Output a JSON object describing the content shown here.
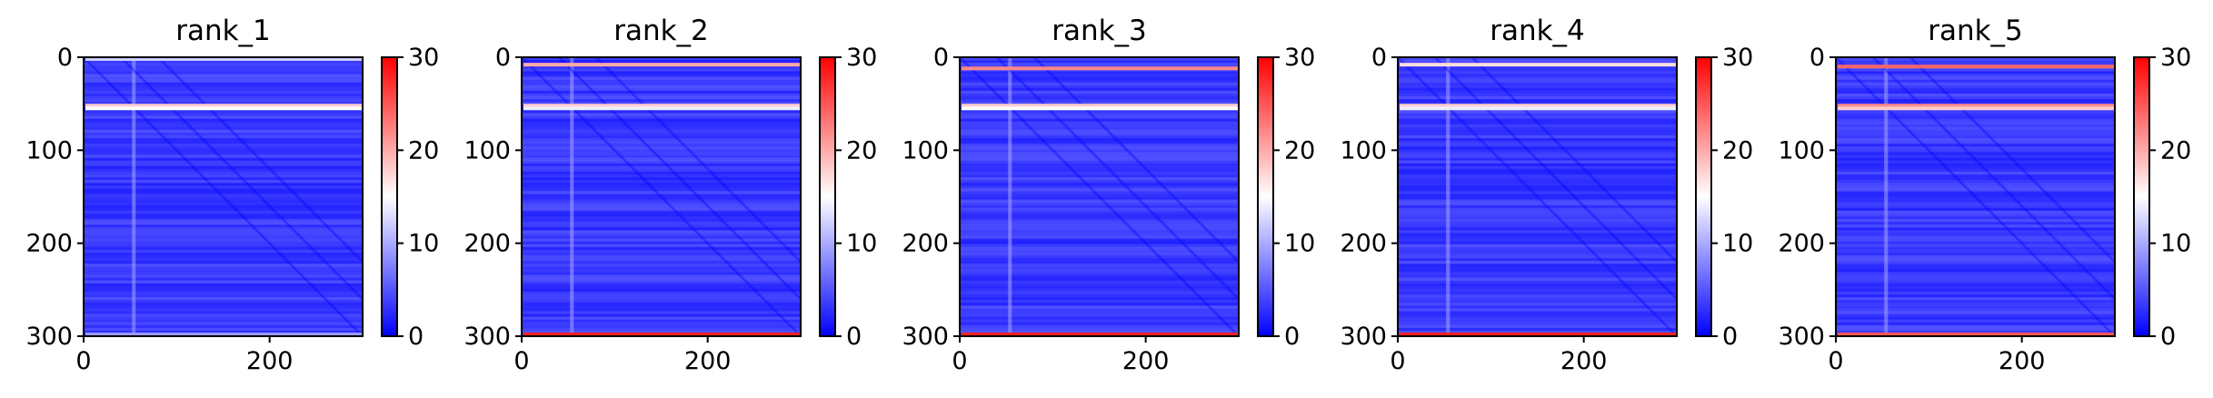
{
  "chart_data": [
    {
      "type": "heatmap",
      "title": "rank_1",
      "xlim": [
        0,
        300
      ],
      "ylim": [
        300,
        0
      ],
      "xticks": [
        "0",
        "200"
      ],
      "yticks": [
        "0",
        "100",
        "200",
        "300"
      ],
      "colorbar": {
        "range": [
          0,
          30
        ],
        "ticks": [
          "0",
          "10",
          "20",
          "30"
        ]
      },
      "bright_rows": [
        {
          "row": 52,
          "value": 18
        },
        {
          "row": 55,
          "value": 15
        },
        {
          "row": 2,
          "value": 12
        },
        {
          "row": 298,
          "value": 9
        }
      ]
    },
    {
      "type": "heatmap",
      "title": "rank_2",
      "xlim": [
        0,
        300
      ],
      "ylim": [
        300,
        0
      ],
      "xticks": [
        "0",
        "200"
      ],
      "yticks": [
        "0",
        "100",
        "200",
        "300"
      ],
      "colorbar": {
        "range": [
          0,
          30
        ],
        "ticks": [
          "0",
          "10",
          "20",
          "30"
        ]
      },
      "bright_rows": [
        {
          "row": 8,
          "value": 20
        },
        {
          "row": 52,
          "value": 18
        },
        {
          "row": 55,
          "value": 14
        },
        {
          "row": 298,
          "value": 28
        }
      ]
    },
    {
      "type": "heatmap",
      "title": "rank_3",
      "xlim": [
        0,
        300
      ],
      "ylim": [
        300,
        0
      ],
      "xticks": [
        "0",
        "200"
      ],
      "yticks": [
        "0",
        "100",
        "200",
        "300"
      ],
      "colorbar": {
        "range": [
          0,
          30
        ],
        "ticks": [
          "0",
          "10",
          "20",
          "30"
        ]
      },
      "bright_rows": [
        {
          "row": 12,
          "value": 22
        },
        {
          "row": 52,
          "value": 18
        },
        {
          "row": 55,
          "value": 15
        },
        {
          "row": 298,
          "value": 28
        }
      ]
    },
    {
      "type": "heatmap",
      "title": "rank_4",
      "xlim": [
        0,
        300
      ],
      "ylim": [
        300,
        0
      ],
      "xticks": [
        "0",
        "200"
      ],
      "yticks": [
        "0",
        "100",
        "200",
        "300"
      ],
      "colorbar": {
        "range": [
          0,
          30
        ],
        "ticks": [
          "0",
          "10",
          "20",
          "30"
        ]
      },
      "bright_rows": [
        {
          "row": 8,
          "value": 17
        },
        {
          "row": 52,
          "value": 18
        },
        {
          "row": 55,
          "value": 14
        },
        {
          "row": 298,
          "value": 28
        }
      ]
    },
    {
      "type": "heatmap",
      "title": "rank_5",
      "xlim": [
        0,
        300
      ],
      "ylim": [
        300,
        0
      ],
      "xticks": [
        "0",
        "200"
      ],
      "yticks": [
        "0",
        "100",
        "200",
        "300"
      ],
      "colorbar": {
        "range": [
          0,
          30
        ],
        "ticks": [
          "0",
          "10",
          "20",
          "30"
        ]
      },
      "bright_rows": [
        {
          "row": 10,
          "value": 24
        },
        {
          "row": 52,
          "value": 22
        },
        {
          "row": 55,
          "value": 18
        },
        {
          "row": 298,
          "value": 25
        }
      ]
    }
  ]
}
